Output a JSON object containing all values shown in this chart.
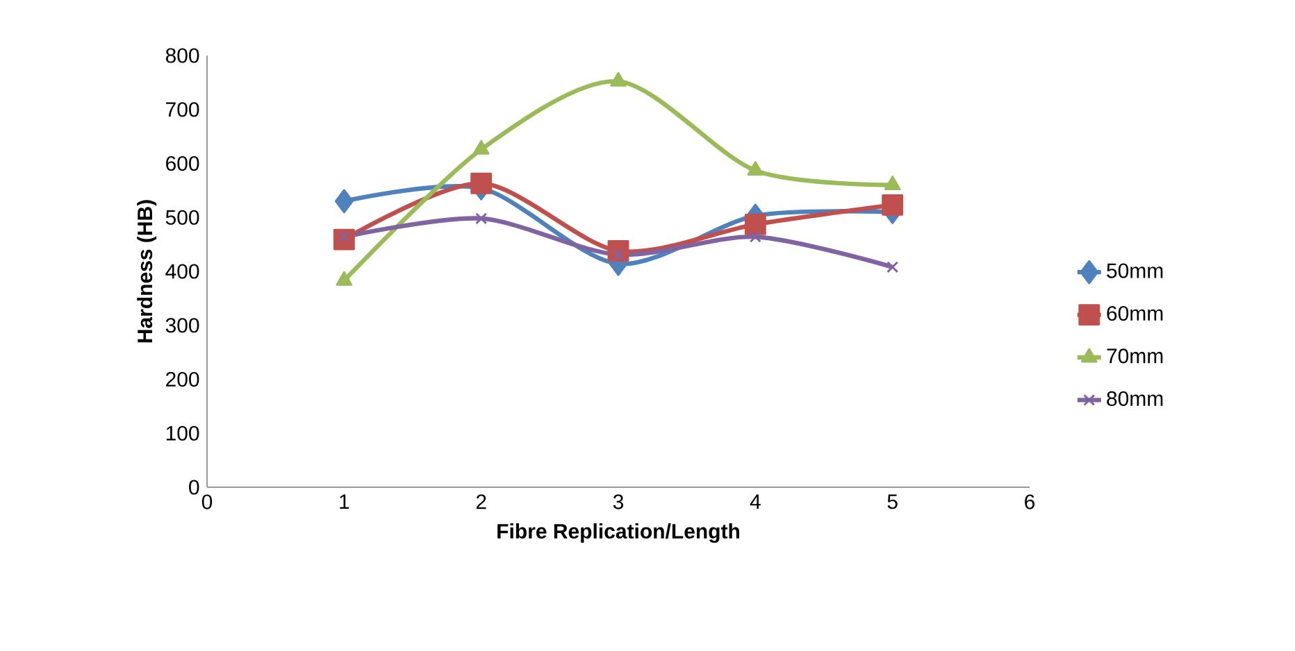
{
  "chart_data": {
    "type": "line",
    "xlabel": "Fibre Replication/Length",
    "ylabel": "Hardness (HB)",
    "x": [
      1,
      2,
      3,
      4,
      5
    ],
    "series": [
      {
        "name": "50mm",
        "color": "#4f81bd",
        "marker": "diamond",
        "values": [
          530,
          554,
          414,
          503,
          510
        ]
      },
      {
        "name": "60mm",
        "color": "#c0504d",
        "marker": "square",
        "values": [
          459,
          563,
          438,
          487,
          523
        ]
      },
      {
        "name": "70mm",
        "color": "#9bbb59",
        "marker": "triangle",
        "values": [
          383,
          626,
          752,
          587,
          560
        ]
      },
      {
        "name": "80mm",
        "color": "#8064a2",
        "marker": "cross",
        "values": [
          464,
          498,
          431,
          464,
          408
        ]
      }
    ],
    "xlim": [
      0,
      6
    ],
    "xticks": [
      0,
      1,
      2,
      3,
      4,
      5,
      6
    ],
    "ylim": [
      0,
      800
    ],
    "yticks": [
      0,
      100,
      200,
      300,
      400,
      500,
      600,
      700,
      800
    ],
    "legend": "right",
    "line_style": "solid"
  }
}
